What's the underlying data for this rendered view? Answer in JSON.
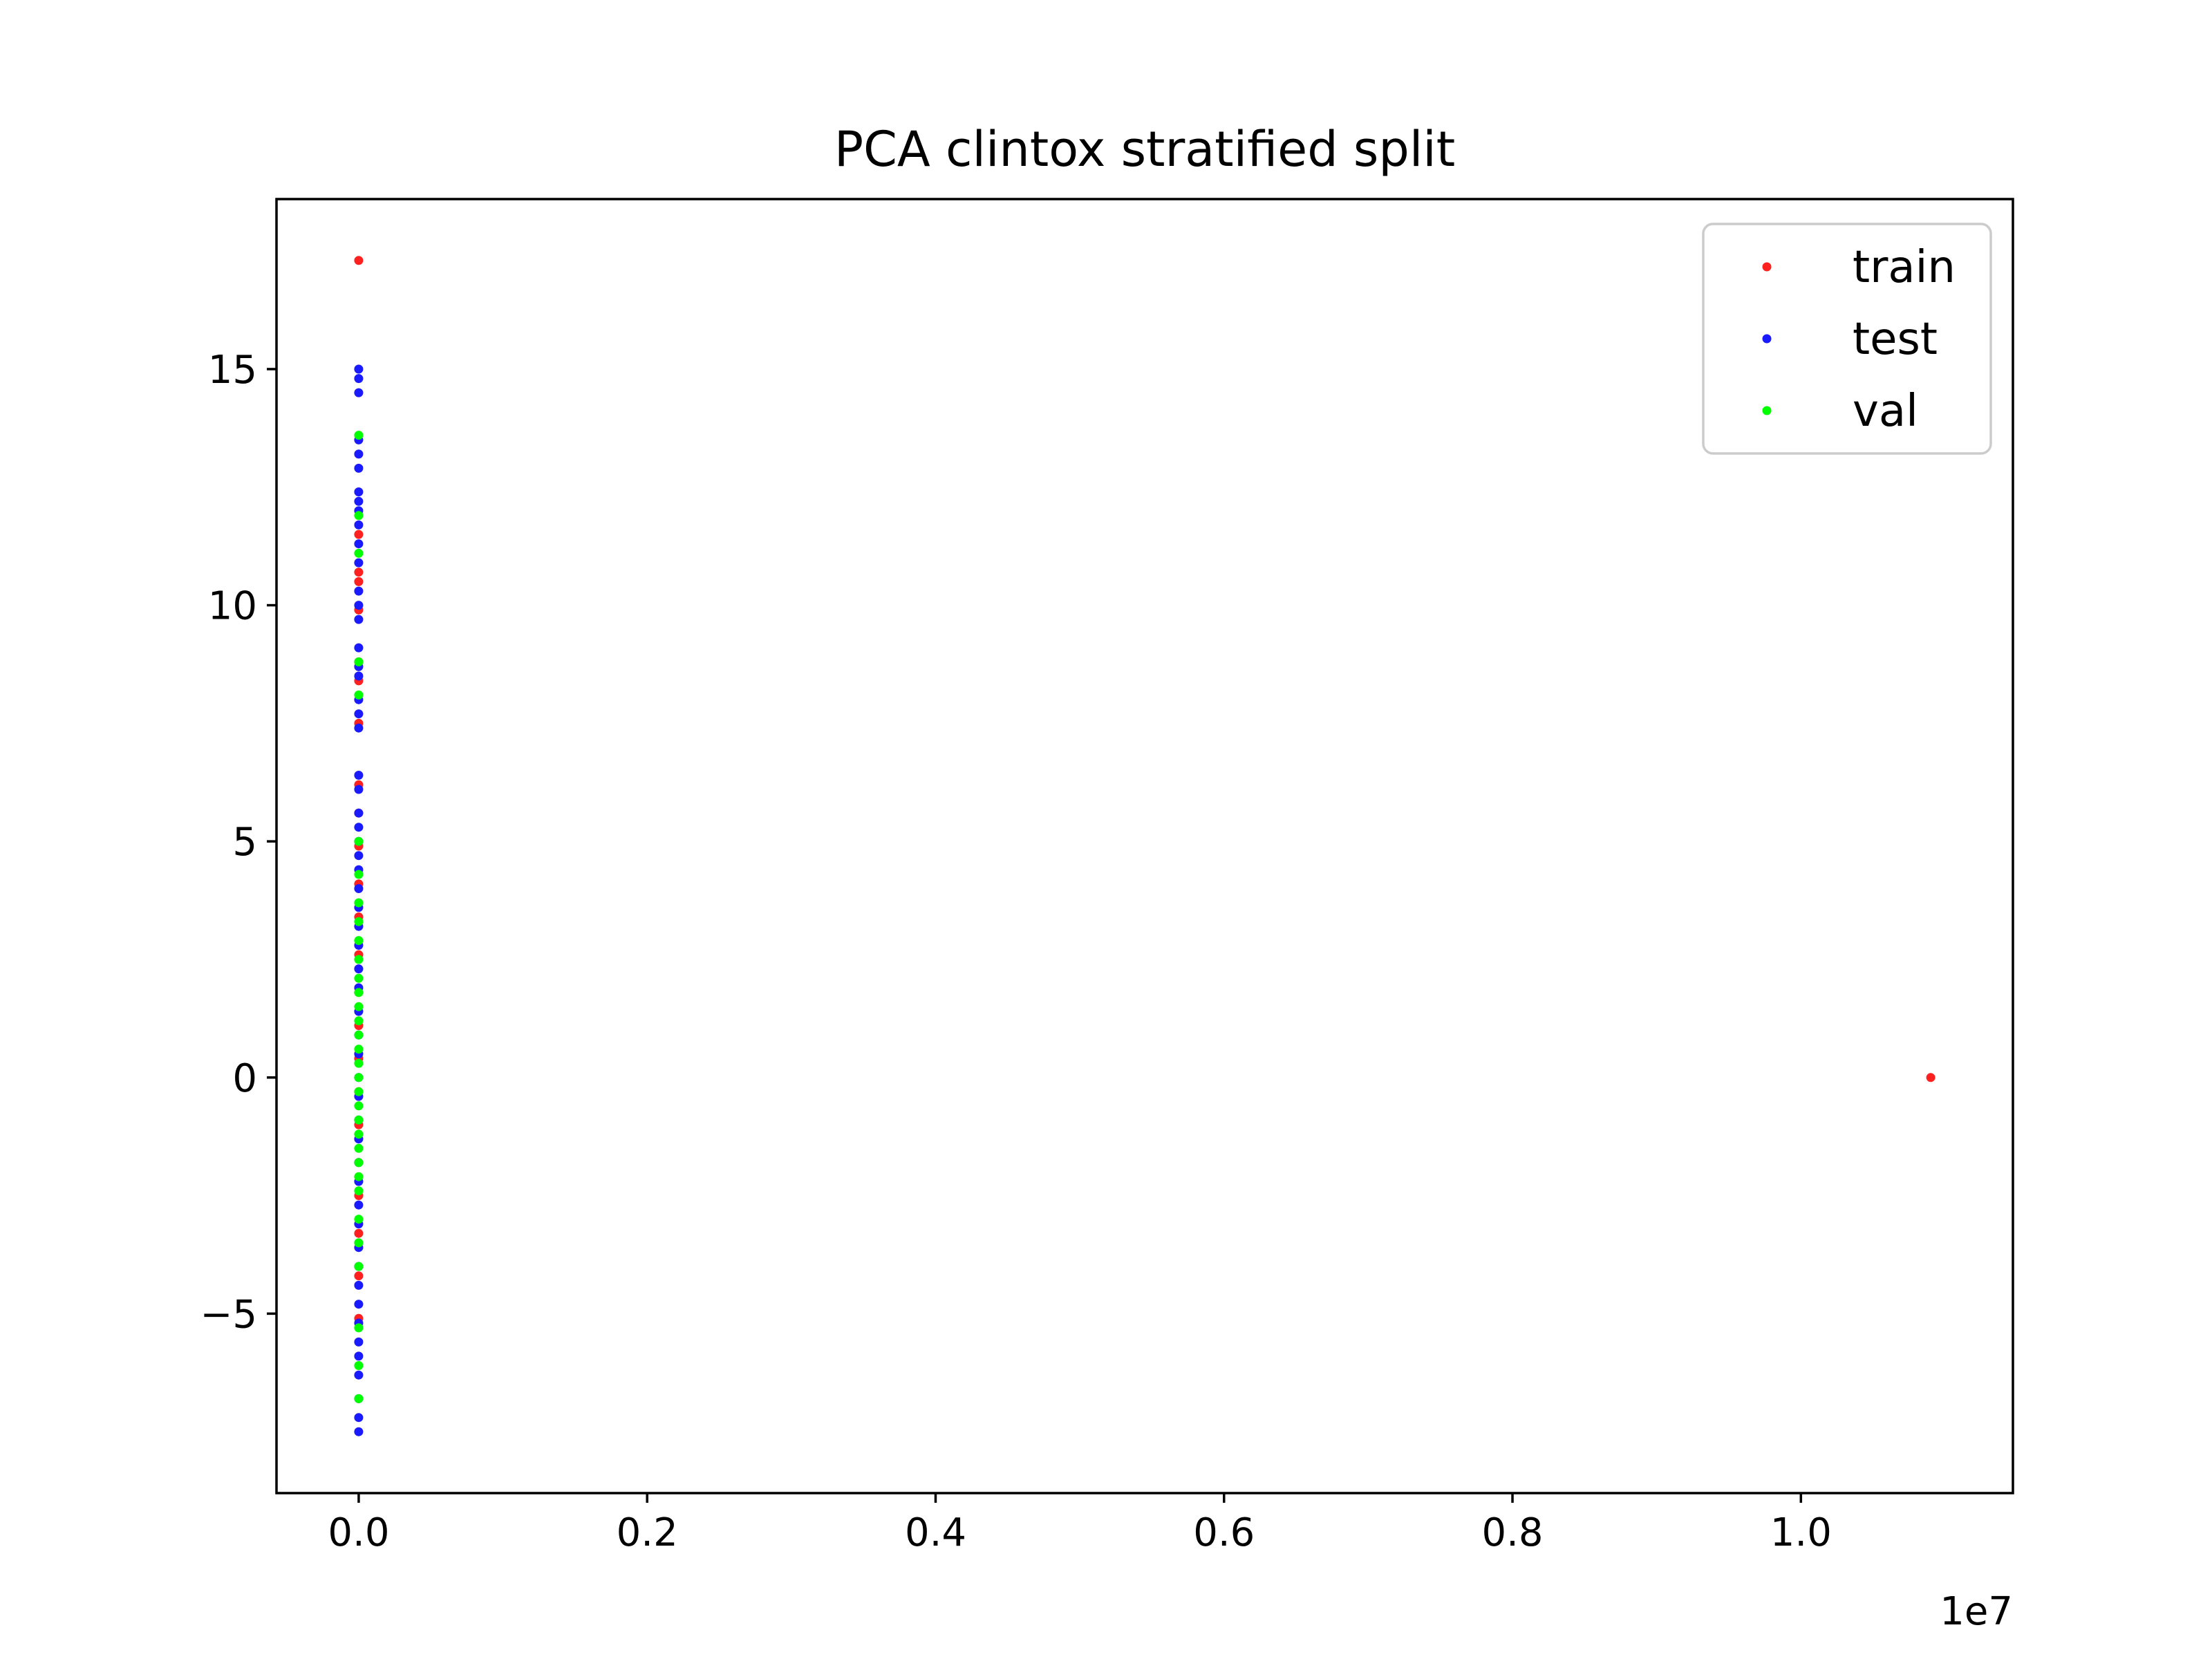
{
  "chart_data": {
    "type": "scatter",
    "title": "PCA clintox stratified split",
    "xlabel": "",
    "ylabel": "",
    "x_offset_text": "1e7",
    "xlim": [
      -0.057,
      1.147
    ],
    "ylim": [
      -8.8,
      18.6
    ],
    "x_ticks": [
      0.0,
      0.2,
      0.4,
      0.6,
      0.8,
      1.0
    ],
    "x_tick_labels": [
      "0.0",
      "0.2",
      "0.4",
      "0.6",
      "0.8",
      "1.0"
    ],
    "y_ticks": [
      -5,
      0,
      5,
      10,
      15
    ],
    "y_tick_labels": [
      "−5",
      "0",
      "5",
      "10",
      "15"
    ],
    "grid": false,
    "legend_position": "top-right",
    "series": [
      {
        "name": "train",
        "color": "#ff2020",
        "points": [
          [
            0.0,
            17.3
          ],
          [
            0.0,
            11.5
          ],
          [
            0.0,
            10.7
          ],
          [
            0.0,
            10.5
          ],
          [
            0.0,
            9.9
          ],
          [
            0.0,
            8.8
          ],
          [
            0.0,
            8.4
          ],
          [
            0.0,
            7.5
          ],
          [
            0.0,
            6.2
          ],
          [
            0.0,
            5.6
          ],
          [
            0.0,
            4.9
          ],
          [
            0.0,
            4.1
          ],
          [
            0.0,
            3.4
          ],
          [
            0.0,
            2.6
          ],
          [
            0.0,
            1.8
          ],
          [
            0.0,
            1.1
          ],
          [
            0.0,
            0.4
          ],
          [
            0.0,
            -0.3
          ],
          [
            0.0,
            -1.0
          ],
          [
            0.0,
            -1.8
          ],
          [
            0.0,
            -2.5
          ],
          [
            0.0,
            -3.3
          ],
          [
            0.0,
            -4.2
          ],
          [
            0.0,
            -5.1
          ],
          [
            1.09,
            0.0
          ]
        ]
      },
      {
        "name": "test",
        "color": "#1a1aff",
        "points": [
          [
            0.0,
            15.0
          ],
          [
            0.0,
            14.8
          ],
          [
            0.0,
            14.5
          ],
          [
            0.0,
            13.5
          ],
          [
            0.0,
            13.2
          ],
          [
            0.0,
            12.9
          ],
          [
            0.0,
            12.4
          ],
          [
            0.0,
            12.2
          ],
          [
            0.0,
            12.0
          ],
          [
            0.0,
            11.7
          ],
          [
            0.0,
            11.3
          ],
          [
            0.0,
            10.9
          ],
          [
            0.0,
            10.3
          ],
          [
            0.0,
            10.0
          ],
          [
            0.0,
            9.7
          ],
          [
            0.0,
            9.1
          ],
          [
            0.0,
            8.7
          ],
          [
            0.0,
            8.5
          ],
          [
            0.0,
            8.0
          ],
          [
            0.0,
            7.7
          ],
          [
            0.0,
            7.4
          ],
          [
            0.0,
            6.4
          ],
          [
            0.0,
            6.1
          ],
          [
            0.0,
            5.6
          ],
          [
            0.0,
            5.3
          ],
          [
            0.0,
            5.0
          ],
          [
            0.0,
            4.7
          ],
          [
            0.0,
            4.4
          ],
          [
            0.0,
            4.0
          ],
          [
            0.0,
            3.6
          ],
          [
            0.0,
            3.2
          ],
          [
            0.0,
            2.8
          ],
          [
            0.0,
            2.3
          ],
          [
            0.0,
            1.9
          ],
          [
            0.0,
            1.4
          ],
          [
            0.0,
            0.9
          ],
          [
            0.0,
            0.5
          ],
          [
            0.0,
            0.0
          ],
          [
            0.0,
            -0.4
          ],
          [
            0.0,
            -0.9
          ],
          [
            0.0,
            -1.3
          ],
          [
            0.0,
            -1.8
          ],
          [
            0.0,
            -2.2
          ],
          [
            0.0,
            -2.7
          ],
          [
            0.0,
            -3.1
          ],
          [
            0.0,
            -3.6
          ],
          [
            0.0,
            -4.0
          ],
          [
            0.0,
            -4.4
          ],
          [
            0.0,
            -4.8
          ],
          [
            0.0,
            -5.2
          ],
          [
            0.0,
            -5.6
          ],
          [
            0.0,
            -5.9
          ],
          [
            0.0,
            -6.3
          ],
          [
            0.0,
            -6.8
          ],
          [
            0.0,
            -7.2
          ],
          [
            0.0,
            -7.5
          ]
        ]
      },
      {
        "name": "val",
        "color": "#00ff00",
        "points": [
          [
            0.0,
            13.6
          ],
          [
            0.0,
            11.9
          ],
          [
            0.0,
            11.1
          ],
          [
            0.0,
            8.8
          ],
          [
            0.0,
            8.1
          ],
          [
            0.0,
            5.0
          ],
          [
            0.0,
            4.3
          ],
          [
            0.0,
            3.7
          ],
          [
            0.0,
            3.3
          ],
          [
            0.0,
            2.9
          ],
          [
            0.0,
            2.5
          ],
          [
            0.0,
            2.1
          ],
          [
            0.0,
            1.8
          ],
          [
            0.0,
            1.5
          ],
          [
            0.0,
            1.2
          ],
          [
            0.0,
            0.9
          ],
          [
            0.0,
            0.6
          ],
          [
            0.0,
            0.3
          ],
          [
            0.0,
            0.0
          ],
          [
            0.0,
            -0.3
          ],
          [
            0.0,
            -0.6
          ],
          [
            0.0,
            -0.9
          ],
          [
            0.0,
            -1.2
          ],
          [
            0.0,
            -1.5
          ],
          [
            0.0,
            -1.8
          ],
          [
            0.0,
            -2.1
          ],
          [
            0.0,
            -2.4
          ],
          [
            0.0,
            -3.0
          ],
          [
            0.0,
            -3.5
          ],
          [
            0.0,
            -4.0
          ],
          [
            0.0,
            -5.3
          ],
          [
            0.0,
            -6.1
          ],
          [
            0.0,
            -6.8
          ]
        ]
      }
    ]
  }
}
